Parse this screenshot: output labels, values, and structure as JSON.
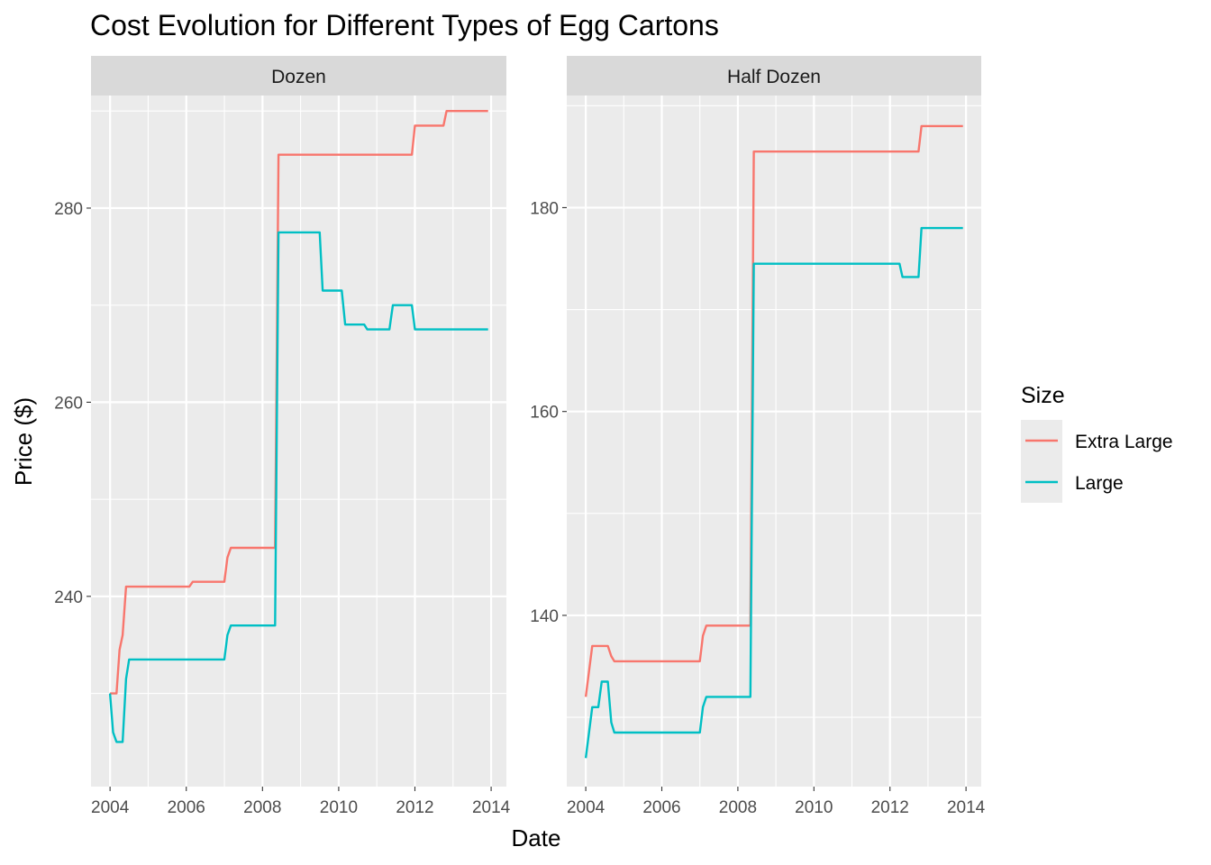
{
  "chart_data": {
    "type": "line",
    "title": "Cost Evolution for Different Types of Egg Cartons",
    "xlabel": "Date",
    "ylabel": "Price ($)",
    "grid": true,
    "legend": {
      "title": "Size",
      "position": "right",
      "entries": [
        {
          "name": "Extra Large",
          "color": "#F8766D"
        },
        {
          "name": "Large",
          "color": "#00BFC4"
        }
      ]
    },
    "panels": [
      {
        "name": "Dozen",
        "xlim": [
          2003.5,
          2014.4
        ],
        "ylim": [
          220.4,
          291.6
        ],
        "xticks": [
          2004,
          2006,
          2008,
          2010,
          2012,
          2014
        ],
        "xtick_labels": [
          "2004",
          "2006",
          "2008",
          "2010",
          "2012",
          "2014"
        ],
        "yticks": [
          240,
          260,
          280
        ],
        "ytick_labels": [
          "240",
          "260",
          "280"
        ],
        "series": [
          {
            "name": "Extra Large",
            "x": [
              2004.0,
              2004.17,
              2004.25,
              2004.33,
              2004.42,
              2006.08,
              2006.17,
              2006.25,
              2007.0,
              2007.08,
              2007.17,
              2008.33,
              2008.42,
              2011.92,
              2012.0,
              2012.75,
              2012.83,
              2013.92
            ],
            "y": [
              230.0,
              230.0,
              234.5,
              236.0,
              241.0,
              241.0,
              241.5,
              241.5,
              241.5,
              244.0,
              245.0,
              245.0,
              285.5,
              285.5,
              288.5,
              288.5,
              290.0,
              290.0
            ]
          },
          {
            "name": "Large",
            "x": [
              2004.0,
              2004.08,
              2004.17,
              2004.33,
              2004.42,
              2004.5,
              2007.0,
              2007.08,
              2007.17,
              2008.33,
              2008.42,
              2009.5,
              2009.58,
              2010.08,
              2010.17,
              2010.67,
              2010.75,
              2011.33,
              2011.42,
              2011.92,
              2012.0,
              2013.92
            ],
            "y": [
              230.0,
              226.0,
              225.0,
              225.0,
              231.5,
              233.5,
              233.5,
              236.0,
              237.0,
              237.0,
              277.5,
              277.5,
              271.5,
              271.5,
              268.0,
              268.0,
              267.5,
              267.5,
              270.0,
              270.0,
              267.5,
              267.5
            ]
          }
        ]
      },
      {
        "name": "Half Dozen",
        "xlim": [
          2003.5,
          2014.4
        ],
        "ylim": [
          123.2,
          191.0
        ],
        "xticks": [
          2004,
          2006,
          2008,
          2010,
          2012,
          2014
        ],
        "xtick_labels": [
          "2004",
          "2006",
          "2008",
          "2010",
          "2012",
          "2014"
        ],
        "yticks": [
          140,
          160,
          180
        ],
        "ytick_labels": [
          "140",
          "160",
          "180"
        ],
        "series": [
          {
            "name": "Extra Large",
            "x": [
              2004.0,
              2004.17,
              2004.58,
              2004.67,
              2004.75,
              2007.0,
              2007.08,
              2007.17,
              2008.33,
              2008.42,
              2012.75,
              2012.83,
              2013.92
            ],
            "y": [
              132.0,
              137.0,
              137.0,
              136.0,
              135.5,
              135.5,
              138.0,
              139.0,
              139.0,
              185.5,
              185.5,
              188.0,
              188.0
            ]
          },
          {
            "name": "Large",
            "x": [
              2004.0,
              2004.17,
              2004.33,
              2004.42,
              2004.58,
              2004.67,
              2004.75,
              2007.0,
              2007.08,
              2007.17,
              2008.33,
              2008.42,
              2012.25,
              2012.33,
              2012.75,
              2012.83,
              2013.92
            ],
            "y": [
              126.0,
              131.0,
              131.0,
              133.5,
              133.5,
              129.5,
              128.5,
              128.5,
              131.0,
              132.0,
              132.0,
              174.5,
              174.5,
              173.2,
              173.2,
              178.0,
              178.0
            ]
          }
        ]
      }
    ]
  }
}
